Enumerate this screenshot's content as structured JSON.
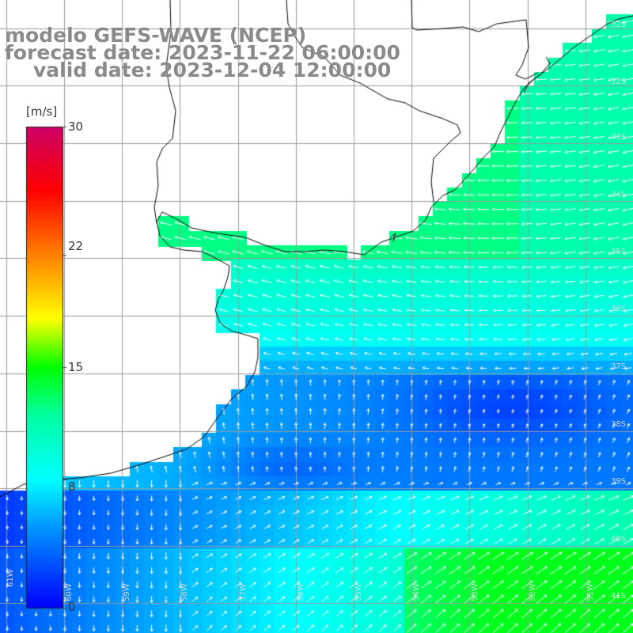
{
  "header": {
    "line1": "modelo GEFS-WAVE (NCEP)",
    "line2": "forecast date: 2023-11-22 06:00:00",
    "line3": "valid date: 2023-12-04 12:00:00"
  },
  "colorbar": {
    "unit": "[m/s]",
    "ticks": [
      "30",
      "22",
      "15",
      "8",
      "0"
    ],
    "tick_values": [
      30,
      22,
      15,
      8,
      0
    ],
    "min": 0,
    "max": 30,
    "colors": [
      "#0000ff",
      "#0096ff",
      "#00ffff",
      "#00ff00",
      "#ffff00",
      "#ff8000",
      "#ff0000",
      "#cc0066"
    ]
  },
  "map": {
    "variable": "wind speed and direction",
    "land_color": "#ffffff",
    "coastline_color": "#000000",
    "grid_color": "#9a9a9a",
    "lat_labels": [
      "32S",
      "33S",
      "34S",
      "35S",
      "36S",
      "37S",
      "38S",
      "39S",
      "40S",
      "41S"
    ],
    "lon_labels": [
      "61W",
      "60W",
      "59W",
      "58W",
      "57W",
      "56W",
      "55W",
      "54W",
      "53W",
      "52W",
      "51W"
    ],
    "wind_field_summary": "Easterly/northeasterly winds 10-14 m/s along Uruguay and southern Brazil coast; weak 2-5 m/s winds in a band off Buenos Aires province near 37-38S; westerly to southwesterly winds 8-13 m/s in the south near 40-41S."
  }
}
